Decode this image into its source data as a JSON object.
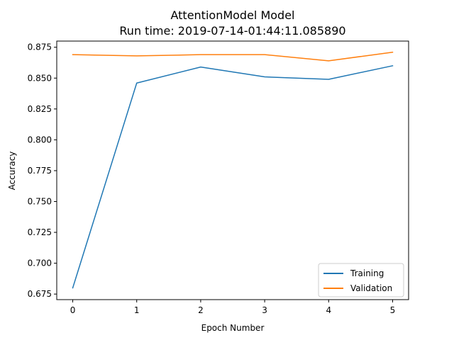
{
  "chart_data": {
    "type": "line",
    "title": "AttentionModel Model",
    "subtitle": "Run time: 2019-07-14-01:44:11.085890",
    "xlabel": "Epoch Number",
    "ylabel": "Accuracy",
    "x": [
      0,
      1,
      2,
      3,
      4,
      5
    ],
    "xticks": [
      "0",
      "1",
      "2",
      "3",
      "4",
      "5"
    ],
    "yticks": [
      0.675,
      0.7,
      0.725,
      0.75,
      0.775,
      0.8,
      0.825,
      0.85,
      0.875
    ],
    "ytick_labels": [
      "0.675",
      "0.700",
      "0.725",
      "0.750",
      "0.775",
      "0.800",
      "0.825",
      "0.850",
      "0.875"
    ],
    "xlim": [
      -0.25,
      5.25
    ],
    "ylim": [
      0.6705,
      0.88
    ],
    "grid": false,
    "legend_position": "lower-right",
    "series": [
      {
        "name": "Training",
        "color": "#1f77b4",
        "values": [
          0.68,
          0.846,
          0.859,
          0.851,
          0.849,
          0.86
        ]
      },
      {
        "name": "Validation",
        "color": "#ff7f0e",
        "values": [
          0.869,
          0.868,
          0.869,
          0.869,
          0.864,
          0.871
        ]
      }
    ]
  }
}
